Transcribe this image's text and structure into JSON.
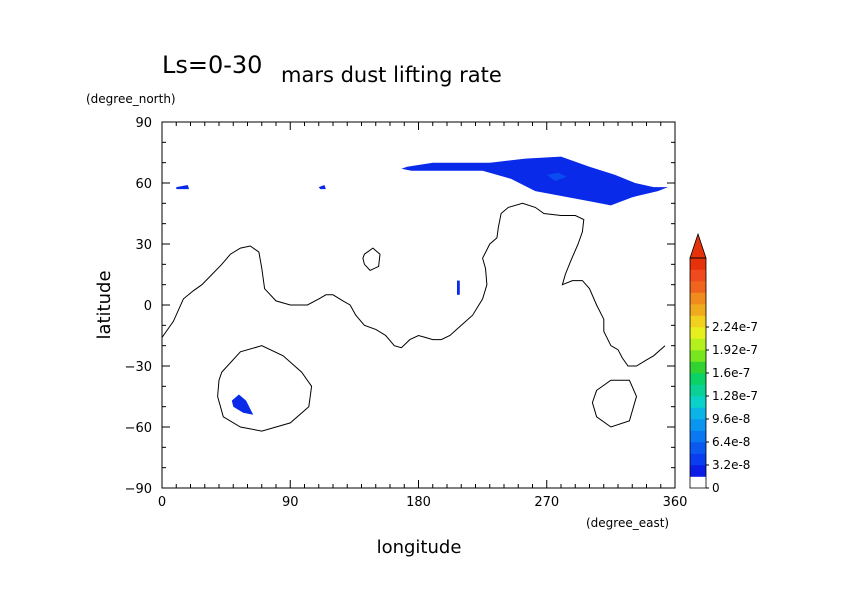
{
  "chart_data": {
    "type": "heatmap",
    "title_prefix": "Ls=0-30",
    "title": "mars dust lifting rate",
    "xlabel": "longitude",
    "ylabel": "latitude",
    "xunit": "(degree_east)",
    "yunit": "(degree_north)",
    "xlim": [
      0,
      360
    ],
    "ylim": [
      -90,
      90
    ],
    "xticks": [
      0,
      90,
      180,
      270,
      360
    ],
    "yticks": [
      90,
      60,
      30,
      0,
      -30,
      -60,
      -90
    ],
    "grid": false,
    "colorbar": {
      "labels": [
        "0",
        "3.2e-8",
        "6.4e-8",
        "9.6e-8",
        "1.28e-7",
        "1.6e-7",
        "1.92e-7",
        "2.24e-7"
      ],
      "colors": [
        "#ffffff",
        "#0a1ee6",
        "#0a3cf0",
        "#0a5af0",
        "#0a78f0",
        "#0a96f0",
        "#0ab4e6",
        "#0ad2c8",
        "#0ad296",
        "#0ad264",
        "#32d232",
        "#78e61e",
        "#b4f01e",
        "#e6f01e",
        "#f0d21e",
        "#f0aa1e",
        "#f08c1e",
        "#f0641e",
        "#f04b1e",
        "#e6320a"
      ],
      "extend": "max"
    },
    "dust_regions": [
      {
        "name": "north-polar-band",
        "lon": [
          [
            172,
            68
          ],
          [
            190,
            70
          ],
          [
            230,
            70
          ],
          [
            255,
            72
          ],
          [
            280,
            73
          ],
          [
            300,
            68
          ],
          [
            318,
            64
          ],
          [
            332,
            60
          ],
          [
            345,
            58
          ],
          [
            355,
            58
          ],
          [
            348,
            56
          ],
          [
            330,
            53
          ],
          [
            315,
            49
          ],
          [
            300,
            51
          ],
          [
            285,
            53
          ],
          [
            262,
            56
          ],
          [
            245,
            62
          ],
          [
            225,
            66
          ],
          [
            200,
            66
          ],
          [
            175,
            66
          ],
          [
            168,
            67
          ]
        ]
      },
      {
        "name": "north-polar-core",
        "lon": [
          [
            270,
            64
          ],
          [
            278,
            65
          ],
          [
            284,
            63
          ],
          [
            276,
            61
          ]
        ]
      },
      {
        "name": "speck-west",
        "lon": [
          [
            10,
            58
          ],
          [
            18,
            59
          ],
          [
            19,
            57
          ],
          [
            10,
            57
          ]
        ]
      },
      {
        "name": "speck-mid",
        "lon": [
          [
            110,
            58
          ],
          [
            114,
            59
          ],
          [
            115,
            57
          ],
          [
            111,
            57
          ]
        ]
      },
      {
        "name": "equatorial-plume",
        "lon": [
          [
            207,
            12
          ],
          [
            209,
            12
          ],
          [
            209,
            5
          ],
          [
            207,
            5
          ]
        ]
      },
      {
        "name": "hellas-patch",
        "lon": [
          [
            49,
            -47
          ],
          [
            54,
            -44
          ],
          [
            59,
            -47
          ],
          [
            64,
            -54
          ],
          [
            57,
            -53
          ],
          [
            50,
            -50
          ]
        ]
      }
    ],
    "contours": [
      {
        "name": "dichotomy-boundary",
        "pts": [
          [
            0,
            -16
          ],
          [
            8,
            -8
          ],
          [
            15,
            3
          ],
          [
            22,
            7
          ],
          [
            28,
            10
          ],
          [
            35,
            15
          ],
          [
            42,
            20
          ],
          [
            48,
            25
          ],
          [
            55,
            28
          ],
          [
            62,
            29
          ],
          [
            68,
            26
          ],
          [
            70,
            18
          ],
          [
            72,
            8
          ],
          [
            80,
            2
          ],
          [
            90,
            0
          ],
          [
            102,
            0
          ],
          [
            110,
            3
          ],
          [
            115,
            5
          ],
          [
            120,
            5
          ],
          [
            127,
            2
          ],
          [
            132,
            0
          ],
          [
            136,
            -5
          ],
          [
            142,
            -10
          ],
          [
            150,
            -12
          ],
          [
            157,
            -15
          ],
          [
            163,
            -20
          ],
          [
            168,
            -21
          ],
          [
            174,
            -17
          ],
          [
            180,
            -15
          ],
          [
            185,
            -16
          ],
          [
            190,
            -17
          ],
          [
            196,
            -17
          ],
          [
            202,
            -15
          ],
          [
            210,
            -10
          ],
          [
            218,
            -5
          ],
          [
            225,
            3
          ],
          [
            228,
            10
          ],
          [
            227,
            18
          ],
          [
            225,
            23
          ],
          [
            230,
            30
          ],
          [
            235,
            33
          ],
          [
            236,
            38
          ],
          [
            238,
            45
          ],
          [
            243,
            48
          ],
          [
            253,
            50
          ],
          [
            262,
            48
          ],
          [
            268,
            45
          ],
          [
            280,
            44
          ],
          [
            290,
            44
          ],
          [
            296,
            42
          ],
          [
            295,
            36
          ],
          [
            292,
            30
          ],
          [
            287,
            22
          ],
          [
            283,
            15
          ],
          [
            281,
            10
          ],
          [
            288,
            12
          ],
          [
            295,
            12
          ],
          [
            300,
            8
          ],
          [
            305,
            0
          ],
          [
            310,
            -7
          ],
          [
            310,
            -13
          ],
          [
            315,
            -20
          ],
          [
            320,
            -22
          ],
          [
            323,
            -26
          ],
          [
            327,
            -30
          ],
          [
            333,
            -30
          ],
          [
            340,
            -27
          ],
          [
            345,
            -25
          ],
          [
            353,
            -20
          ]
        ]
      },
      {
        "name": "tharsis-loop",
        "pts": [
          [
            142,
            25
          ],
          [
            148,
            28
          ],
          [
            153,
            25
          ],
          [
            152,
            19
          ],
          [
            146,
            17
          ],
          [
            142,
            20
          ],
          [
            141,
            23
          ]
        ]
      },
      {
        "name": "hellas-basin",
        "pts": [
          [
            42,
            -33
          ],
          [
            55,
            -23
          ],
          [
            70,
            -20
          ],
          [
            85,
            -25
          ],
          [
            98,
            -33
          ],
          [
            105,
            -40
          ],
          [
            103,
            -50
          ],
          [
            90,
            -58
          ],
          [
            70,
            -62
          ],
          [
            55,
            -60
          ],
          [
            43,
            -55
          ],
          [
            39,
            -45
          ],
          [
            40,
            -37
          ]
        ]
      },
      {
        "name": "argyre-basin",
        "pts": [
          [
            305,
            -42
          ],
          [
            315,
            -37
          ],
          [
            328,
            -37
          ],
          [
            333,
            -45
          ],
          [
            328,
            -57
          ],
          [
            315,
            -60
          ],
          [
            305,
            -55
          ],
          [
            302,
            -48
          ]
        ]
      }
    ]
  }
}
